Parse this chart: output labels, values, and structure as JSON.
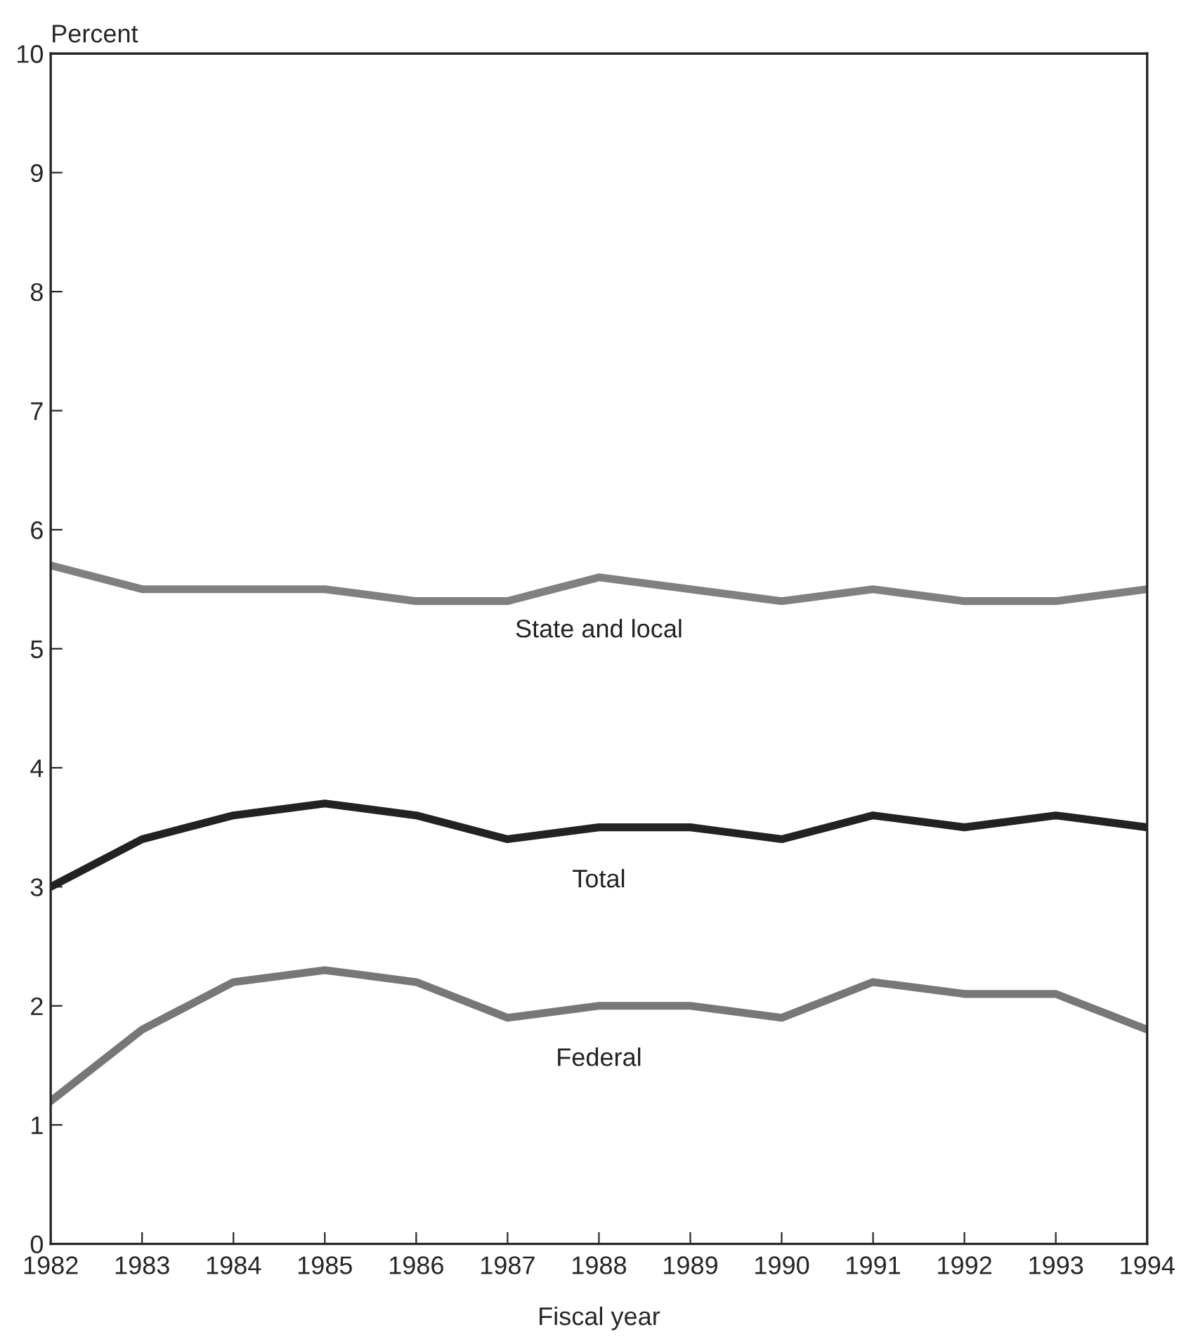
{
  "chart_data": {
    "type": "line",
    "ylabel": "Percent",
    "xlabel": "Fiscal year",
    "x": [
      1982,
      1983,
      1984,
      1985,
      1986,
      1987,
      1988,
      1989,
      1990,
      1991,
      1992,
      1993,
      1994
    ],
    "series": [
      {
        "name": "State and local",
        "color": "#808080",
        "values": [
          5.7,
          5.5,
          5.5,
          5.5,
          5.4,
          5.4,
          5.6,
          5.5,
          5.4,
          5.5,
          5.4,
          5.4,
          5.5
        ]
      },
      {
        "name": "Total",
        "color": "#222222",
        "values": [
          3.0,
          3.4,
          3.6,
          3.7,
          3.6,
          3.4,
          3.5,
          3.5,
          3.4,
          3.6,
          3.5,
          3.6,
          3.5
        ]
      },
      {
        "name": "Federal",
        "color": "#777777",
        "values": [
          1.2,
          1.8,
          2.2,
          2.3,
          2.2,
          1.9,
          2.0,
          2.0,
          1.9,
          2.2,
          2.1,
          2.1,
          1.8
        ]
      }
    ],
    "xlim": [
      1982,
      1994
    ],
    "xticks": [
      1982,
      1983,
      1984,
      1985,
      1986,
      1987,
      1988,
      1989,
      1990,
      1991,
      1992,
      1993,
      1994
    ],
    "ylim": [
      0,
      10
    ],
    "yticks": [
      0,
      1,
      2,
      3,
      4,
      5,
      6,
      7,
      8,
      9,
      10
    ],
    "grid": false,
    "legend": false,
    "marker": "none",
    "line_style": "solid"
  }
}
